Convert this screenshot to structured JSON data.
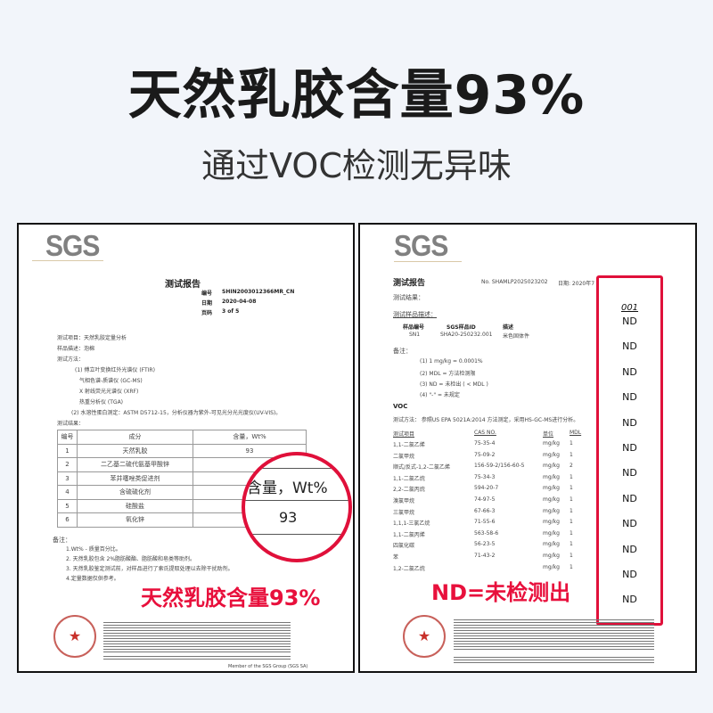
{
  "header": {
    "title": "天然乳胶含量93%",
    "subtitle": "通过VOC检测无异味"
  },
  "left_doc": {
    "logo": "SGS",
    "report_title": "测试报告",
    "meta": [
      {
        "k": "编号",
        "v": "SHIN2003012366MR_CN"
      },
      {
        "k": "日期",
        "v": "2020-04-08"
      },
      {
        "k": "页码",
        "v": "3 of 5"
      }
    ],
    "lines": [
      "测试项目：天然乳胶定量分析",
      "样品描述：泡棉",
      "测试方法：",
      "(1) 傅立叶变换红外光谱仪 (FTIR)",
      "气相色谱-质谱仪 (GC-MS)",
      "X 射线荧光光谱仪 (XRF)",
      "热重分析仪 (TGA)",
      "(2) 水溶性蛋白测定：ASTM D5712-15，分析仪器为紫外-可见光分光光度仪(UV-VIS)。",
      "测试结果："
    ],
    "table": {
      "headers": [
        "编号",
        "成分",
        "含量，Wt%"
      ],
      "rows": [
        [
          "1",
          "天然乳胶",
          "93"
        ],
        [
          "2",
          "二乙基二硫代氨基甲酸锌",
          ""
        ],
        [
          "3",
          "苯并噻唑类促进剂",
          ""
        ],
        [
          "4",
          "含硫硫化剂",
          ""
        ],
        [
          "5",
          "硅酸盐",
          ""
        ],
        [
          "6",
          "氧化锌",
          ""
        ]
      ]
    },
    "notes_label": "备注：",
    "notes": [
      "1.Wt% - 质量百分比。",
      "2. 天然乳胶包含 2%脂肪酸酯、脂肪酸和皂类等助剂。",
      "3. 天然乳胶鉴定测试前，对样品进行了索氏提取处理以去除干扰助剂。",
      "4.定量数据仅供参考。"
    ],
    "magnifier": {
      "label": "含量，Wt%",
      "value": "93"
    },
    "callout": "天然乳胶含量93%",
    "footer": "Member of the SGS Group (SGS SA)"
  },
  "right_doc": {
    "logo": "SGS",
    "report_title": "测试报告",
    "number": "No. SHAMLP2025023202",
    "date": "日期: 2020年7",
    "results_label": "测试结果：",
    "sample_desc_label": "测试样品描述：",
    "sample_headers": [
      "样品编号",
      "SGS样品ID",
      "描述"
    ],
    "sample_row": [
      "SN1",
      "SHA20-250232.001",
      "米色固体件"
    ],
    "notes_label": "备注：",
    "notes": [
      "(1) 1 mg/kg = 0.0001%",
      "(2) MDL = 方法检测限",
      "(3) ND = 未检出 ( < MDL )",
      "(4) \"-\" = 未规定"
    ],
    "voc_label": "VOC",
    "method": "测试方法：   参照US EPA 5021A:2014 方法测定，采用HS-GC-MS进行分析。",
    "table_headers": [
      "测试项目",
      "CAS NO.",
      "单位",
      "MDL",
      "001"
    ],
    "rows": [
      [
        "1,1-二氯乙烯",
        "75-35-4",
        "mg/kg",
        "1",
        "ND"
      ],
      [
        "二氯甲烷",
        "75-09-2",
        "mg/kg",
        "1",
        "ND"
      ],
      [
        "顺式/反式-1,2-二氯乙烯",
        "156-59-2/156-60-5",
        "mg/kg",
        "2",
        "ND"
      ],
      [
        "1,1-二氯乙烷",
        "75-34-3",
        "mg/kg",
        "1",
        "ND"
      ],
      [
        "2,2-二氯丙烷",
        "594-20-7",
        "mg/kg",
        "1",
        "ND"
      ],
      [
        "溴氯甲烷",
        "74-97-5",
        "mg/kg",
        "1",
        "ND"
      ],
      [
        "三氯甲烷",
        "67-66-3",
        "mg/kg",
        "1",
        "ND"
      ],
      [
        "1,1,1-三氯乙烷",
        "71-55-6",
        "mg/kg",
        "1",
        "ND"
      ],
      [
        "1,1-二氯丙烯",
        "563-58-6",
        "mg/kg",
        "1",
        "ND"
      ],
      [
        "四氯化碳",
        "56-23-5",
        "mg/kg",
        "1",
        "ND"
      ],
      [
        "苯",
        "71-43-2",
        "mg/kg",
        "1",
        "ND"
      ],
      [
        "1,2-二氯乙烷",
        "",
        "mg/kg",
        "1",
        "ND"
      ]
    ],
    "highlight": {
      "sample": "001",
      "values": [
        "ND",
        "ND",
        "ND",
        "ND",
        "ND",
        "ND",
        "ND",
        "ND",
        "ND",
        "ND",
        "ND",
        "ND"
      ]
    },
    "callout": "ND=未检测出"
  },
  "colors": {
    "accent": "#e8103c",
    "background": "#f2f5fa"
  }
}
